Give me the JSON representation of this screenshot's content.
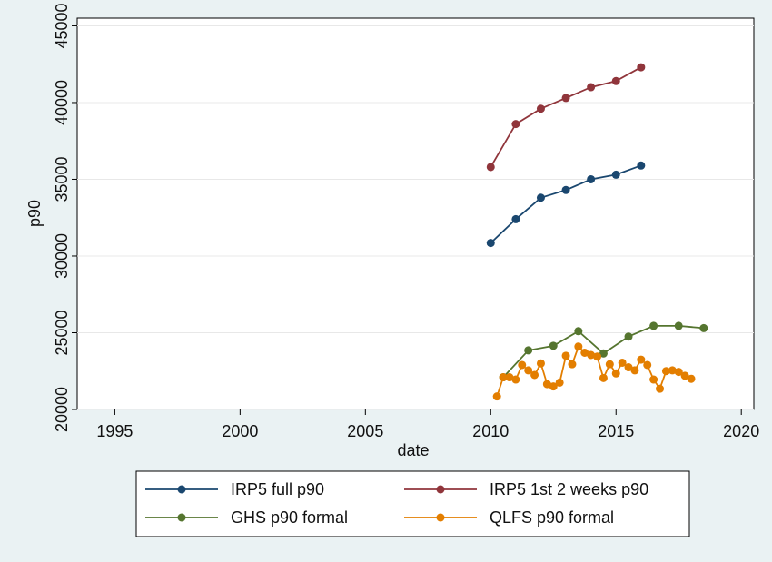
{
  "chart_data": {
    "type": "line",
    "title": "",
    "xlabel": "date",
    "ylabel": "p90",
    "xlim": [
      1993.5,
      2020.5
    ],
    "ylim": [
      20000,
      45500
    ],
    "x_ticks": [
      "1995",
      "2000",
      "2005",
      "2010",
      "2015",
      "2020"
    ],
    "y_ticks": [
      "20000",
      "25000",
      "30000",
      "35000",
      "40000",
      "45000"
    ],
    "grid": true,
    "legend_position": "bottom",
    "series": [
      {
        "name": "IRP5 full p90",
        "color": "#1a476f",
        "x": [
          2010,
          2011,
          2012,
          2013,
          2014,
          2015,
          2016
        ],
        "y": [
          30850,
          32400,
          33800,
          34300,
          35000,
          35300,
          35900
        ]
      },
      {
        "name": "IRP5 1st 2 weeks p90",
        "color": "#90353b",
        "x": [
          2010,
          2011,
          2012,
          2013,
          2014,
          2015,
          2016
        ],
        "y": [
          35800,
          38600,
          39600,
          40300,
          41000,
          41400,
          42300
        ]
      },
      {
        "name": "GHS p90 formal",
        "color": "#55752f",
        "x": [
          2010.5,
          2011.5,
          2012.5,
          2013.5,
          2014.5,
          2015.5,
          2016.5,
          2017.5,
          2018.5
        ],
        "y": [
          22100,
          23850,
          24150,
          25100,
          23650,
          24750,
          25450,
          25450,
          25300
        ]
      },
      {
        "name": "QLFS p90 formal",
        "color": "#e37e00",
        "x": [
          2010.25,
          2010.5,
          2010.75,
          2011.0,
          2011.25,
          2011.5,
          2011.75,
          2012.0,
          2012.25,
          2012.5,
          2012.75,
          2013.0,
          2013.25,
          2013.5,
          2013.75,
          2014.0,
          2014.25,
          2014.5,
          2014.75,
          2015.0,
          2015.25,
          2015.5,
          2015.75,
          2016.0,
          2016.25,
          2016.5,
          2016.75,
          2017.0,
          2017.25,
          2017.5,
          2017.75,
          2018.0
        ],
        "y": [
          20850,
          22100,
          22100,
          21950,
          22900,
          22550,
          22250,
          23000,
          21650,
          21500,
          21750,
          23500,
          22950,
          24100,
          23700,
          23550,
          23450,
          22050,
          22950,
          22350,
          23050,
          22750,
          22550,
          23250,
          22900,
          21950,
          21350,
          22500,
          22550,
          22450,
          22200,
          22000
        ]
      }
    ]
  }
}
